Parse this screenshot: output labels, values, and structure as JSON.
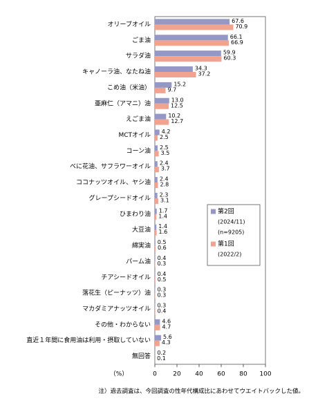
{
  "chart_data": {
    "type": "hbar",
    "categories": [
      "オリーブオイル",
      "ごま油",
      "サラダ油",
      "キャノーラ油、なたね油",
      "こめ油（米油）",
      "亜麻仁（アマニ）油",
      "えごま油",
      "MCTオイル",
      "コーン油",
      "べに花油、サフラワーオイル",
      "ココナッツオイル、ヤシ油",
      "グレープシードオイル",
      "ひまわり油",
      "大豆油",
      "綿実油",
      "パーム油",
      "チアシードオイル",
      "落花生（ピーナッツ）油",
      "マカダミアナッツオイル",
      "その他・わからない",
      "直近１年間に食用油は利用・摂取していない",
      "無回答"
    ],
    "series": [
      {
        "name": "第2回",
        "detail": [
          "(2024/11)",
          "(n=9205)"
        ],
        "color": "#9597c6",
        "values": [
          67.6,
          66.1,
          59.9,
          34.3,
          15.2,
          13.0,
          10.2,
          4.2,
          2.5,
          2.4,
          2.4,
          2.3,
          1.7,
          1.4,
          0.5,
          0.4,
          0.4,
          0.3,
          0.3,
          4.6,
          5.6,
          0.2
        ],
        "value_labels": [
          "67.6",
          "66.1",
          "59.9",
          "34.3",
          "15.2",
          "13.0",
          "10.2",
          "4.2",
          "2.5",
          "2.4",
          "2.4",
          "2.3",
          "1.7",
          "1.4",
          "0.5",
          "0.4",
          "0.4",
          "0.3",
          "0.3",
          "4.6",
          "5.6",
          "0.2"
        ]
      },
      {
        "name": "第1回",
        "detail": [
          "(2022/2)"
        ],
        "color": "#f0a38f",
        "values": [
          70.9,
          66.9,
          60.3,
          37.2,
          9.7,
          12.5,
          12.7,
          2.5,
          3.5,
          3.7,
          2.8,
          3.1,
          1.4,
          1.6,
          0.6,
          0.3,
          0.5,
          0.3,
          0.4,
          4.7,
          4.3,
          0.1
        ],
        "value_labels": [
          "70.9",
          "66.9",
          "60.3",
          "37.2",
          "9.7",
          "12.5",
          "12.7",
          "2.5",
          "3.5",
          "3.7",
          "2.8",
          "3.1",
          "1.4",
          "1.6",
          "0.6",
          "0.3",
          "0.5",
          "0.3",
          "0.4",
          "4.7",
          "4.3",
          "0.1"
        ]
      }
    ],
    "xlim": [
      0,
      100
    ],
    "xticks": [
      0,
      20,
      40,
      60,
      80,
      100
    ],
    "xlabel": "（%）",
    "note": "注）過去調査は、今回調査の性年代構成比にあわせてウエイトバックした値。"
  }
}
